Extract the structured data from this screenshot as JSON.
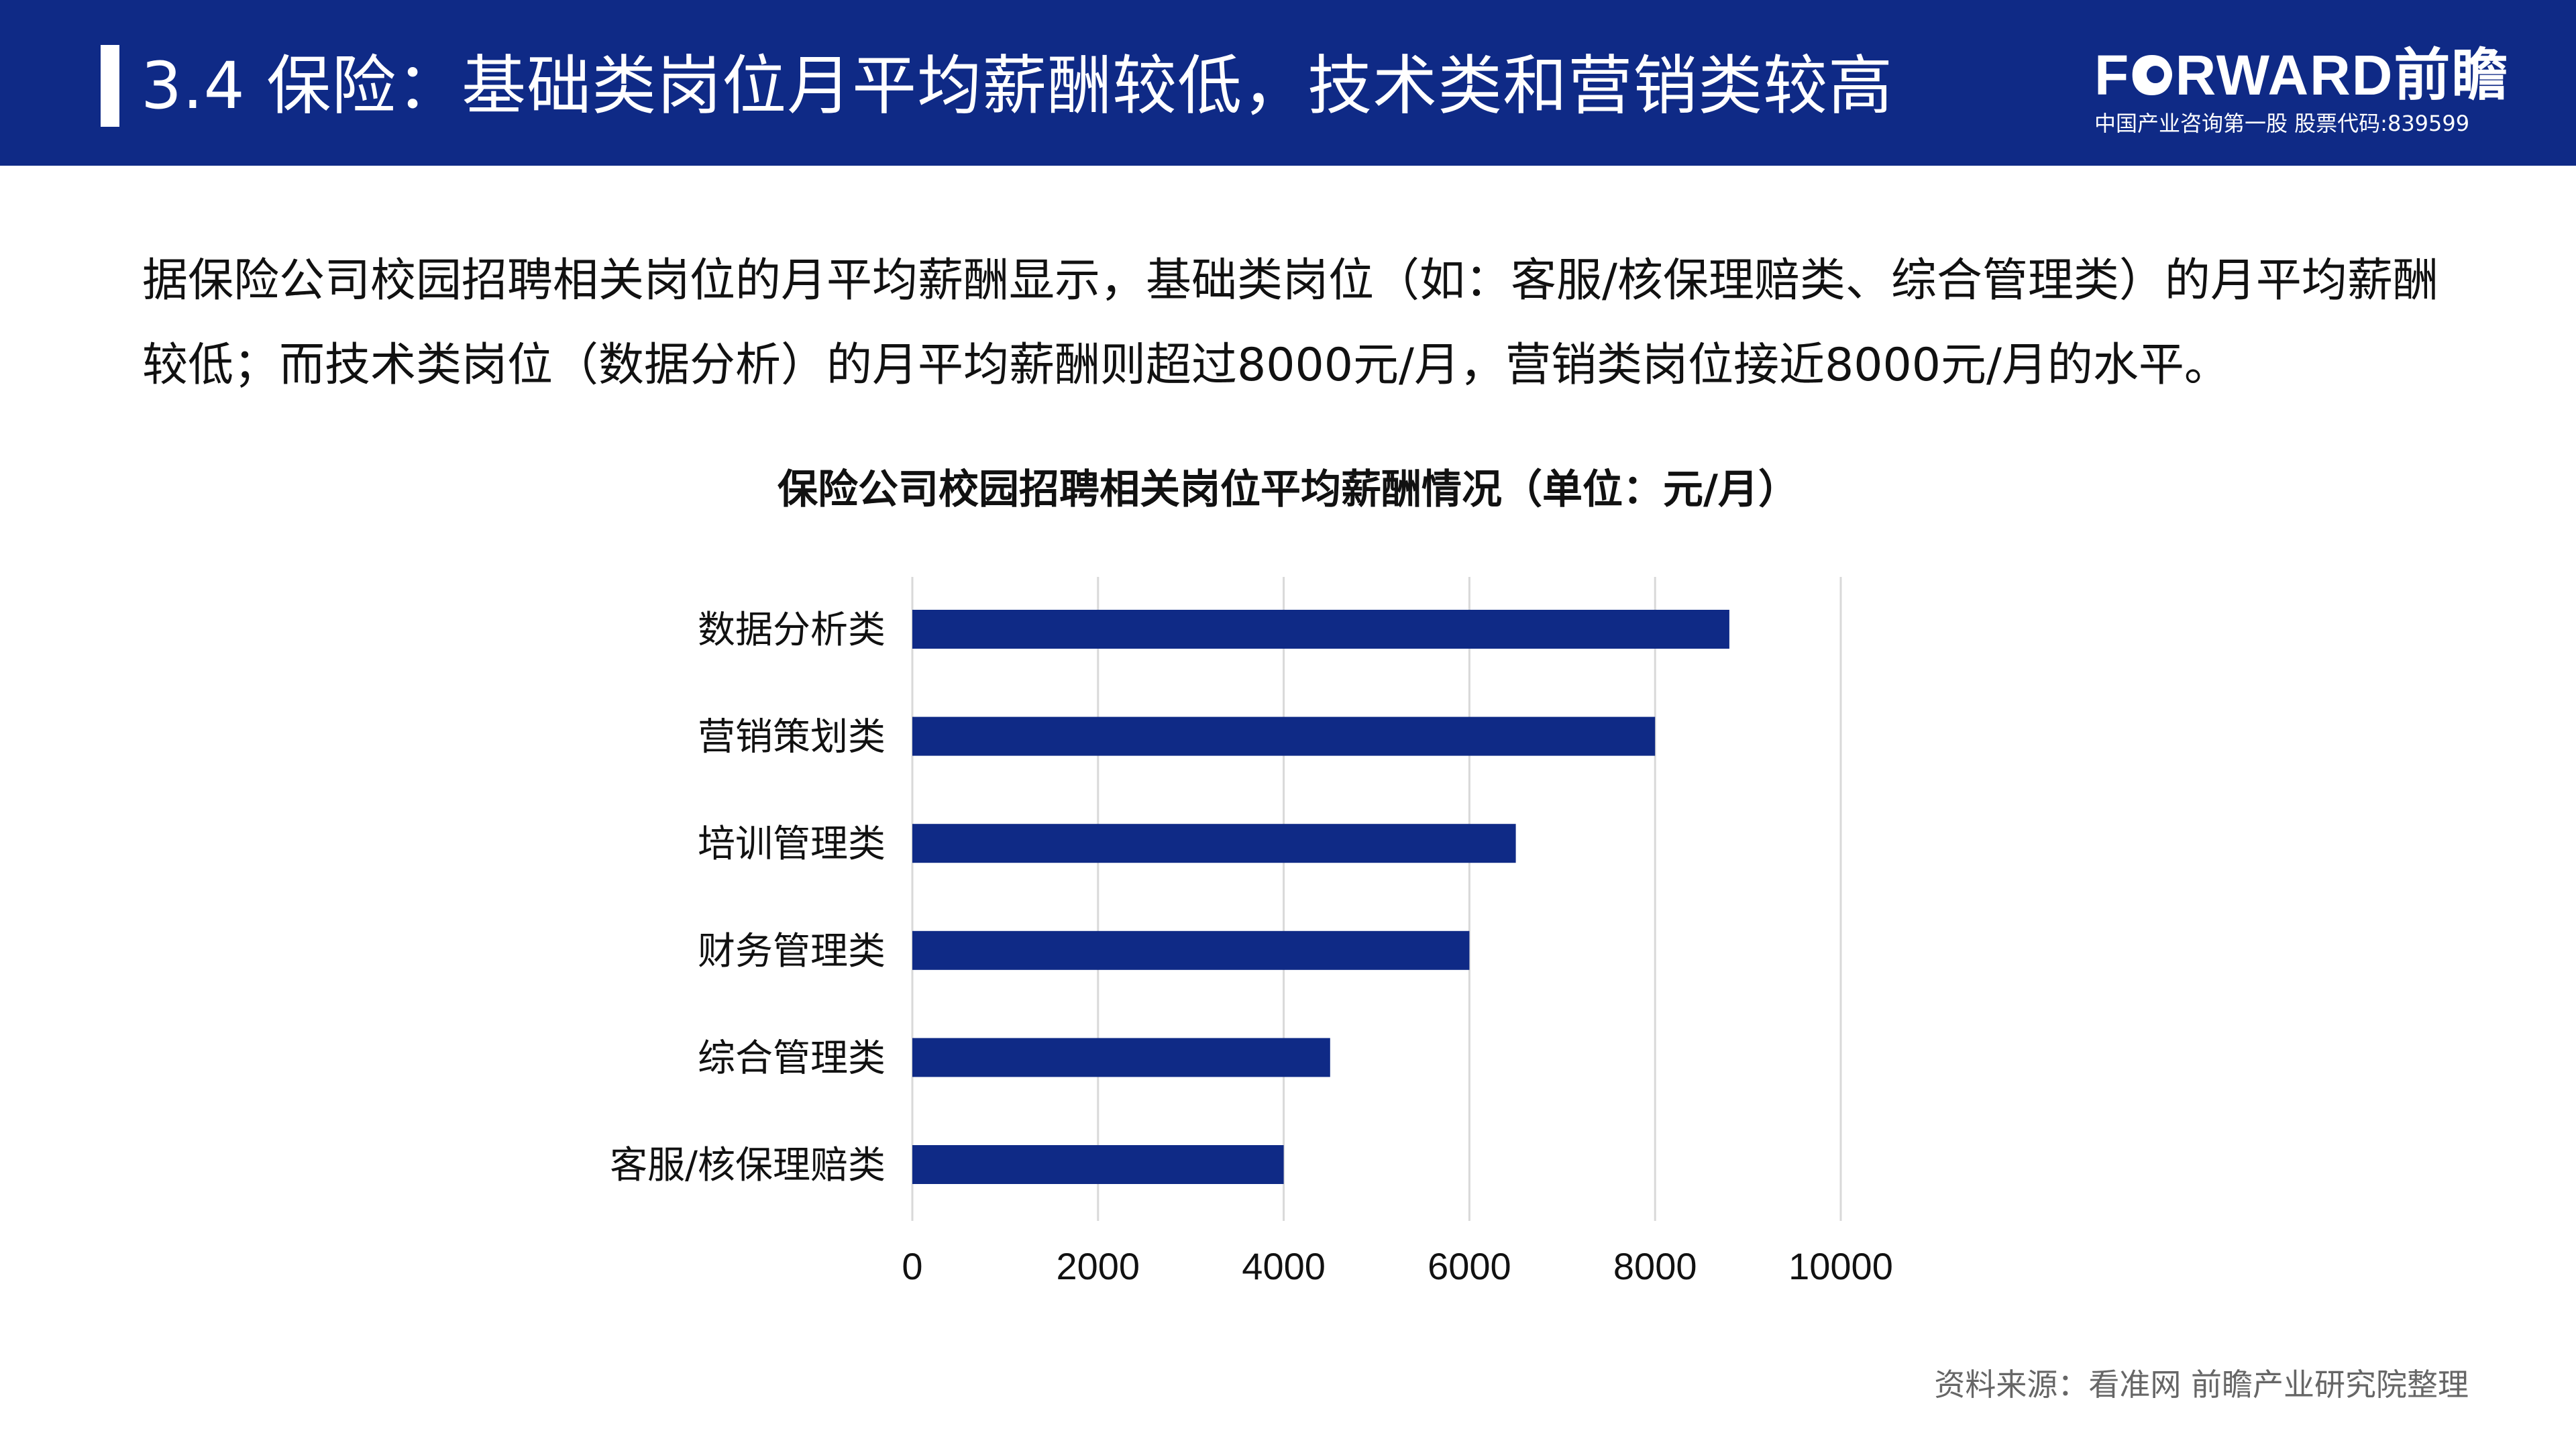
{
  "header": {
    "title": "3.4 保险：基础类岗位月平均薪酬较低，技术类和营销类较高",
    "logo_text": "FORWARD前瞻",
    "logo_sub": "中国产业咨询第一股  股票代码:839599",
    "bg_color": "#0f2a86"
  },
  "intro": "据保险公司校园招聘相关岗位的月平均薪酬显示，基础类岗位（如：客服/核保理赔类、综合管理类）的月平均薪酬较低；而技术类岗位（数据分析）的月平均薪酬则超过8000元/月，营销类岗位接近8000元/月的水平。",
  "chart_data": {
    "type": "bar",
    "orientation": "horizontal",
    "title": "保险公司校园招聘相关岗位平均薪酬情况（单位：元/月）",
    "categories": [
      "数据分析类",
      "营销策划类",
      "培训管理类",
      "财务管理类",
      "综合管理类",
      "客服/核保理赔类"
    ],
    "values": [
      8800,
      8000,
      6500,
      6000,
      4500,
      4000
    ],
    "xlim": [
      0,
      10000
    ],
    "xticks": [
      "0",
      "2000",
      "4000",
      "6000",
      "8000",
      "10000"
    ],
    "grid": true,
    "legend": "none",
    "bar_color": "#0f2a86"
  },
  "source": "资料来源：看准网 前瞻产业研究院整理"
}
